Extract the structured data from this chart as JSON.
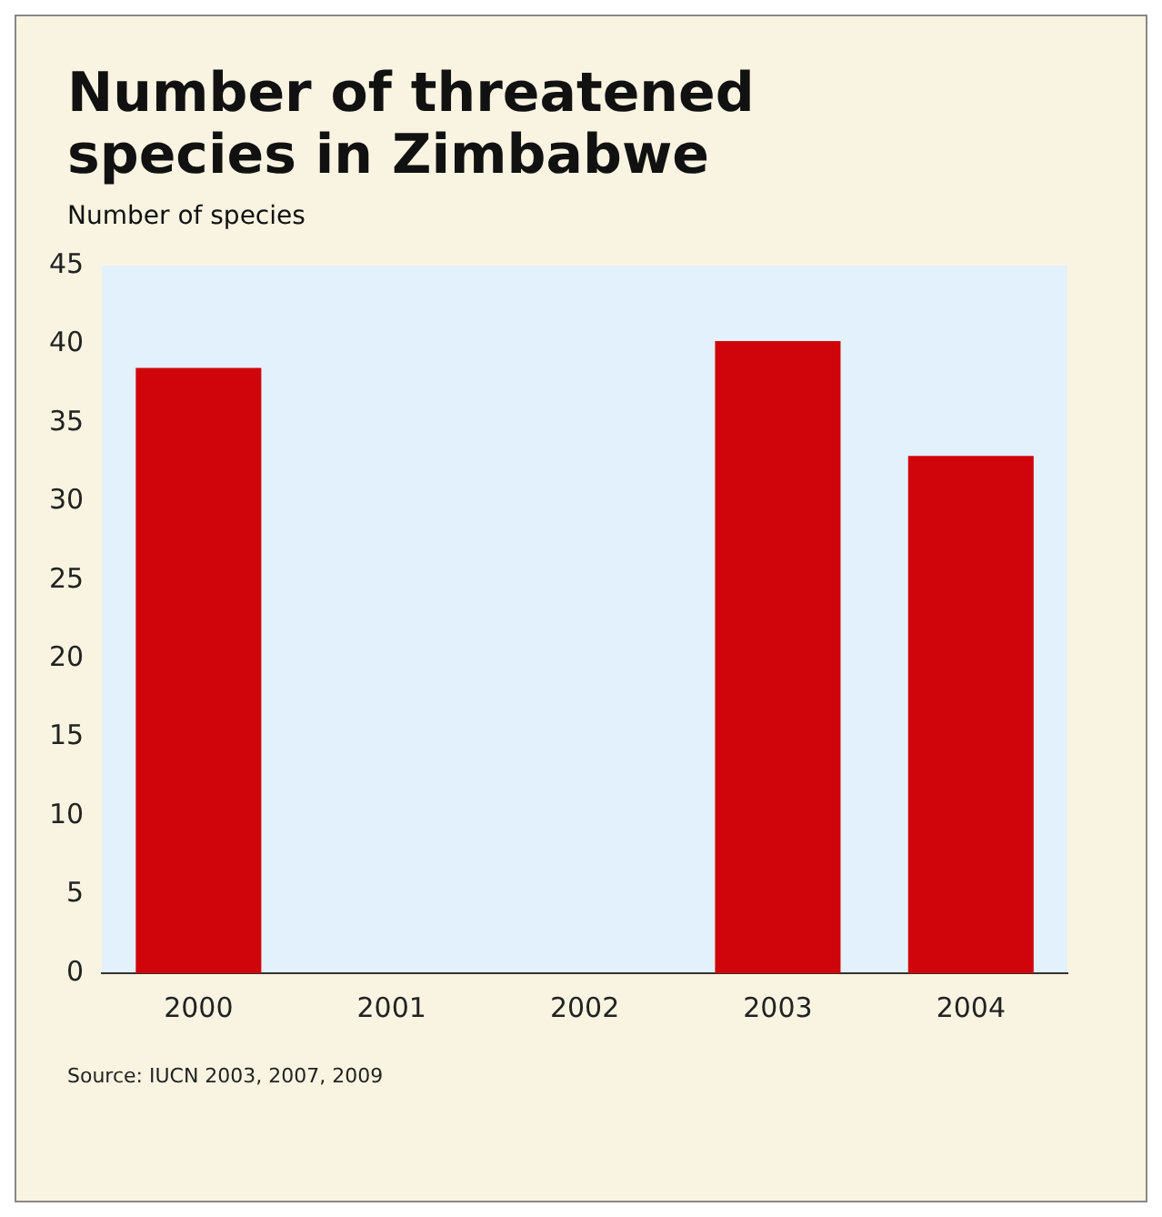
{
  "chart_data": {
    "type": "bar",
    "title": "Number of threatened species in Zimbabwe",
    "ylabel": "Number of species",
    "categories": [
      "2000",
      "2001",
      "2002",
      "2003",
      "2004"
    ],
    "values": [
      38.5,
      null,
      null,
      40.2,
      32.9
    ],
    "color": "#d0050c",
    "ylim": [
      0,
      45
    ],
    "yticks": [
      0,
      5,
      10,
      15,
      20,
      25,
      30,
      35,
      40,
      45
    ],
    "grid": false,
    "annotations": [
      "Source: IUCN 2003, 2007, 2009"
    ]
  }
}
